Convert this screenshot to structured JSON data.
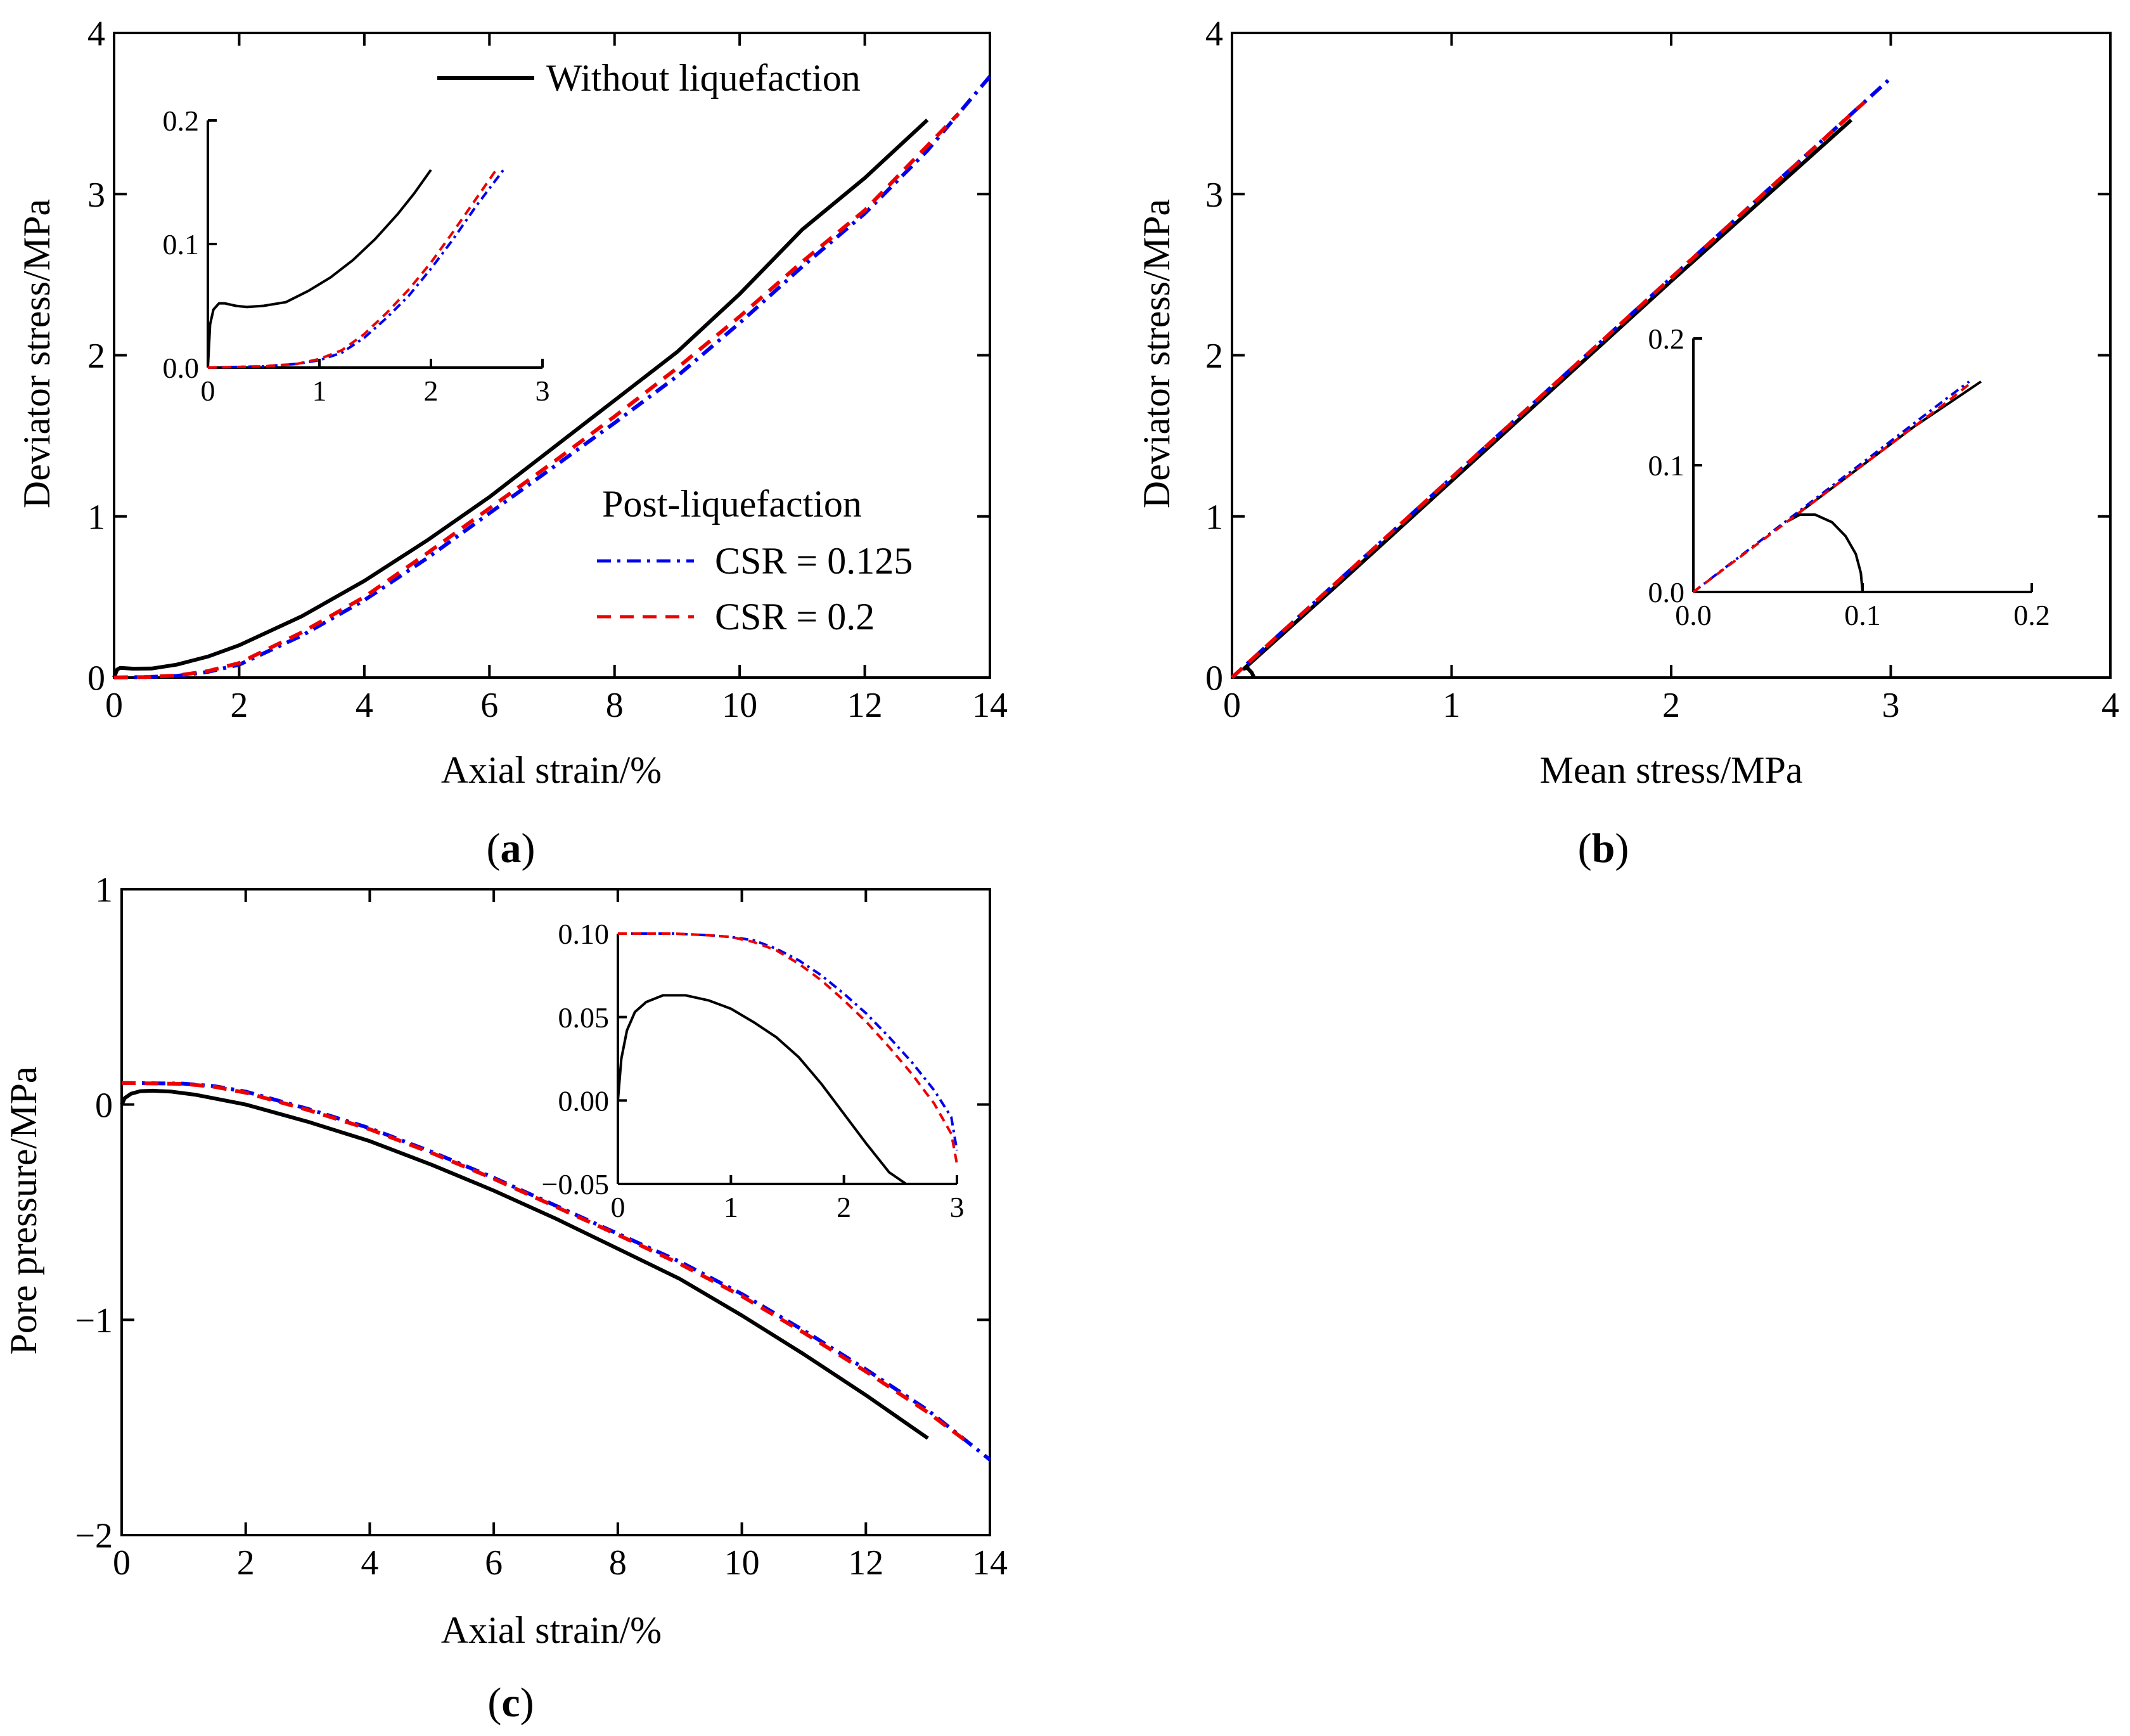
{
  "colors": {
    "without": "#000000",
    "csr125": "#0000ee",
    "csr2": "#ee0000"
  },
  "legend": {
    "without_liquefaction": "Without liquefaction",
    "post_title": "Post-liquefaction",
    "csr125": "CSR = 0.125",
    "csr2": "CSR = 0.2"
  },
  "panels": {
    "a": {
      "open": "(",
      "letter": "a",
      "close": ")"
    },
    "b": {
      "open": "(",
      "letter": "b",
      "close": ")"
    },
    "c": {
      "open": "(",
      "letter": "c",
      "close": ")"
    }
  },
  "chart_data": [
    {
      "id": "a",
      "type": "line",
      "xlabel": "Axial strain/%",
      "ylabel": "Deviator stress/MPa",
      "xlim": [
        0,
        14
      ],
      "ylim": [
        0,
        4
      ],
      "xticks": [
        0,
        2,
        4,
        6,
        8,
        10,
        12,
        14
      ],
      "yticks": [
        0,
        1,
        2,
        3,
        4
      ],
      "xtick_labels": [
        "0",
        "2",
        "4",
        "6",
        "8",
        "10",
        "12",
        "14"
      ],
      "ytick_labels": [
        "0",
        "1",
        "2",
        "3",
        "4"
      ],
      "series": [
        {
          "name": "Without liquefaction",
          "key": "without",
          "dash": "",
          "x": [
            0,
            0.05,
            0.1,
            0.3,
            0.6,
            1.0,
            1.5,
            2.0,
            3.0,
            4.0,
            5.0,
            6.0,
            7.0,
            8.0,
            9.0,
            10.0,
            11.0,
            12.0,
            13.0
          ],
          "y": [
            0,
            0.05,
            0.06,
            0.055,
            0.056,
            0.08,
            0.13,
            0.2,
            0.38,
            0.6,
            0.85,
            1.12,
            1.42,
            1.72,
            2.02,
            2.38,
            2.78,
            3.1,
            3.46
          ]
        },
        {
          "name": "CSR = 0.125",
          "key": "csr125",
          "dash": "22,10,5,10",
          "x": [
            0,
            0.5,
            1.0,
            1.5,
            2.0,
            3.0,
            4.0,
            5.0,
            6.0,
            7.0,
            8.0,
            9.0,
            10.0,
            11.0,
            12.0,
            13.0,
            14.0
          ],
          "y": [
            0,
            0.003,
            0.01,
            0.035,
            0.08,
            0.26,
            0.48,
            0.74,
            1.02,
            1.3,
            1.58,
            1.87,
            2.2,
            2.55,
            2.88,
            3.27,
            3.73
          ]
        },
        {
          "name": "CSR = 0.2",
          "key": "csr2",
          "dash": "22,14",
          "x": [
            0,
            0.5,
            1.0,
            1.5,
            2.0,
            3.0,
            4.0,
            5.0,
            6.0,
            7.0,
            8.0,
            9.0,
            10.0,
            11.0,
            12.0,
            13.0,
            13.5
          ],
          "y": [
            0,
            0.003,
            0.012,
            0.04,
            0.09,
            0.28,
            0.5,
            0.77,
            1.05,
            1.33,
            1.62,
            1.92,
            2.24,
            2.58,
            2.9,
            3.3,
            3.5
          ]
        }
      ],
      "inset": {
        "xlim": [
          0,
          3
        ],
        "ylim": [
          0,
          0.2
        ],
        "xticks": [
          0,
          1,
          2,
          3
        ],
        "yticks": [
          0,
          0.1,
          0.2
        ],
        "xtick_labels": [
          "0",
          "1",
          "2",
          "3"
        ],
        "ytick_labels": [
          "0.0",
          "0.1",
          "0.2"
        ],
        "series": [
          {
            "key": "without",
            "dash": "",
            "x": [
              0,
              0.02,
              0.05,
              0.1,
              0.15,
              0.25,
              0.35,
              0.5,
              0.7,
              0.9,
              1.1,
              1.3,
              1.5,
              1.7,
              1.85,
              2.0
            ],
            "y": [
              0,
              0.035,
              0.047,
              0.052,
              0.052,
              0.05,
              0.049,
              0.05,
              0.053,
              0.062,
              0.073,
              0.087,
              0.104,
              0.124,
              0.141,
              0.16
            ]
          },
          {
            "key": "csr125",
            "dash": "14,7,4,7",
            "x": [
              0,
              0.5,
              0.8,
              1.0,
              1.2,
              1.4,
              1.6,
              1.8,
              2.0,
              2.2,
              2.4,
              2.65
            ],
            "y": [
              0,
              0.001,
              0.003,
              0.006,
              0.012,
              0.024,
              0.04,
              0.058,
              0.08,
              0.104,
              0.13,
              0.16
            ]
          },
          {
            "key": "csr2",
            "dash": "14,9",
            "x": [
              0,
              0.5,
              0.8,
              1.0,
              1.2,
              1.4,
              1.6,
              1.8,
              2.0,
              2.2,
              2.4,
              2.6
            ],
            "y": [
              0,
              0.001,
              0.003,
              0.007,
              0.014,
              0.027,
              0.044,
              0.063,
              0.085,
              0.11,
              0.136,
              0.162
            ]
          }
        ]
      }
    },
    {
      "id": "b",
      "type": "line",
      "xlabel": "Mean stress/MPa",
      "ylabel": "Deviator stress/MPa",
      "xlim": [
        0,
        4
      ],
      "ylim": [
        0,
        4
      ],
      "xticks": [
        0,
        1,
        2,
        3,
        4
      ],
      "yticks": [
        0,
        1,
        2,
        3,
        4
      ],
      "xtick_labels": [
        "0",
        "1",
        "2",
        "3",
        "4"
      ],
      "ytick_labels": [
        "0",
        "1",
        "2",
        "3",
        "4"
      ],
      "series": [
        {
          "name": "Without liquefaction",
          "key": "without",
          "dash": "",
          "x": [
            0.1,
            0.09,
            0.07,
            0.055,
            0.5,
            1.0,
            1.5,
            2.0,
            2.5,
            2.82
          ],
          "y": [
            0,
            0.03,
            0.06,
            0.055,
            0.6,
            1.22,
            1.84,
            2.46,
            3.07,
            3.46
          ]
        },
        {
          "name": "CSR = 0.125",
          "key": "csr125",
          "dash": "22,10,5,10",
          "x": [
            0,
            0.5,
            1.0,
            1.5,
            2.0,
            2.5,
            3.0
          ],
          "y": [
            0,
            0.62,
            1.24,
            1.86,
            2.48,
            3.1,
            3.72
          ]
        },
        {
          "name": "CSR = 0.2",
          "key": "csr2",
          "dash": "22,14",
          "x": [
            0,
            0.5,
            1.0,
            1.5,
            2.0,
            2.5,
            2.88
          ],
          "y": [
            0,
            0.62,
            1.24,
            1.86,
            2.48,
            3.1,
            3.57
          ]
        }
      ],
      "inset": {
        "xlim": [
          0,
          0.2
        ],
        "ylim": [
          0,
          0.2
        ],
        "xticks": [
          0,
          0.1,
          0.2
        ],
        "yticks": [
          0,
          0.1,
          0.2
        ],
        "xtick_labels": [
          "0.0",
          "0.1",
          "0.2"
        ],
        "ytick_labels": [
          "0.0",
          "0.1",
          "0.2"
        ],
        "series": [
          {
            "key": "without",
            "dash": "",
            "x": [
              0.1,
              0.099,
              0.096,
              0.09,
              0.082,
              0.072,
              0.063,
              0.056,
              0.07,
              0.1,
              0.13,
              0.17
            ],
            "y": [
              0,
              0.015,
              0.03,
              0.044,
              0.055,
              0.061,
              0.061,
              0.056,
              0.07,
              0.1,
              0.13,
              0.166
            ]
          },
          {
            "key": "csr125",
            "dash": "14,7,4,7",
            "x": [
              0,
              0.05,
              0.1,
              0.15,
              0.163
            ],
            "y": [
              0,
              0.051,
              0.102,
              0.153,
              0.166
            ]
          },
          {
            "key": "csr2",
            "dash": "14,9",
            "x": [
              0,
              0.05,
              0.1,
              0.15,
              0.165
            ],
            "y": [
              0,
              0.05,
              0.1,
              0.15,
              0.166
            ]
          }
        ]
      }
    },
    {
      "id": "c",
      "type": "line",
      "xlabel": "Axial strain/%",
      "ylabel": "Pore pressure/MPa",
      "xlim": [
        0,
        14
      ],
      "ylim": [
        -2,
        1
      ],
      "xticks": [
        0,
        2,
        4,
        6,
        8,
        10,
        12,
        14
      ],
      "yticks": [
        -2,
        -1,
        0,
        1
      ],
      "xtick_labels": [
        "0",
        "2",
        "4",
        "6",
        "8",
        "10",
        "12",
        "14"
      ],
      "ytick_labels": [
        "−2",
        "−1",
        "0",
        "1"
      ],
      "series": [
        {
          "name": "Without liquefaction",
          "key": "without",
          "dash": "",
          "x": [
            0,
            0.05,
            0.15,
            0.3,
            0.5,
            0.8,
            1.2,
            2,
            3,
            4,
            5,
            6,
            7,
            8,
            9,
            10,
            11,
            12,
            13
          ],
          "y": [
            0,
            0.03,
            0.05,
            0.062,
            0.064,
            0.06,
            0.045,
            0.0,
            -0.08,
            -0.17,
            -0.28,
            -0.4,
            -0.53,
            -0.67,
            -0.81,
            -0.98,
            -1.16,
            -1.35,
            -1.55
          ]
        },
        {
          "name": "CSR = 0.125",
          "key": "csr125",
          "dash": "22,10,5,10",
          "x": [
            0,
            1,
            1.5,
            2,
            3,
            4,
            5,
            6,
            7,
            8,
            9,
            10,
            11,
            12,
            13,
            14
          ],
          "y": [
            0.1,
            0.097,
            0.085,
            0.06,
            -0.02,
            -0.11,
            -0.22,
            -0.34,
            -0.47,
            -0.6,
            -0.73,
            -0.88,
            -1.05,
            -1.23,
            -1.42,
            -1.65
          ]
        },
        {
          "name": "CSR = 0.2",
          "key": "csr2",
          "dash": "22,14",
          "x": [
            0,
            1,
            1.5,
            2,
            3,
            4,
            5,
            6,
            7,
            8,
            9,
            10,
            11,
            12,
            13,
            13.6
          ],
          "y": [
            0.1,
            0.096,
            0.082,
            0.055,
            -0.025,
            -0.115,
            -0.225,
            -0.345,
            -0.475,
            -0.605,
            -0.74,
            -0.89,
            -1.06,
            -1.24,
            -1.43,
            -1.56
          ]
        }
      ],
      "inset": {
        "xlim": [
          0,
          3
        ],
        "ylim": [
          -0.05,
          0.1
        ],
        "xticks": [
          0,
          1,
          2,
          3
        ],
        "yticks": [
          -0.05,
          0,
          0.05,
          0.1
        ],
        "xtick_labels": [
          "0",
          "1",
          "2",
          "3"
        ],
        "ytick_labels": [
          "−0.05",
          "0.00",
          "0.05",
          "0.10"
        ],
        "series": [
          {
            "key": "without",
            "dash": "",
            "x": [
              0,
              0.03,
              0.08,
              0.15,
              0.25,
              0.4,
              0.6,
              0.8,
              1.0,
              1.2,
              1.4,
              1.6,
              1.8,
              2.0,
              2.2,
              2.4,
              2.55
            ],
            "y": [
              0,
              0.025,
              0.042,
              0.053,
              0.059,
              0.063,
              0.063,
              0.06,
              0.055,
              0.047,
              0.038,
              0.026,
              0.01,
              -0.008,
              -0.026,
              -0.043,
              -0.05
            ]
          },
          {
            "key": "csr125",
            "dash": "14,7,4,7",
            "x": [
              0,
              0.5,
              0.8,
              1.0,
              1.2,
              1.4,
              1.6,
              1.8,
              2.0,
              2.2,
              2.4,
              2.6,
              2.8,
              2.95,
              3.0
            ],
            "y": [
              0.1,
              0.1,
              0.099,
              0.098,
              0.096,
              0.091,
              0.084,
              0.075,
              0.064,
              0.052,
              0.038,
              0.023,
              0.006,
              -0.01,
              -0.03
            ]
          },
          {
            "key": "csr2",
            "dash": "14,9",
            "x": [
              0,
              0.5,
              0.8,
              1.0,
              1.2,
              1.4,
              1.6,
              1.8,
              2.0,
              2.2,
              2.4,
              2.6,
              2.8,
              2.95,
              3.0
            ],
            "y": [
              0.1,
              0.1,
              0.099,
              0.098,
              0.095,
              0.09,
              0.082,
              0.072,
              0.06,
              0.047,
              0.032,
              0.016,
              -0.002,
              -0.02,
              -0.038
            ]
          }
        ]
      }
    }
  ]
}
